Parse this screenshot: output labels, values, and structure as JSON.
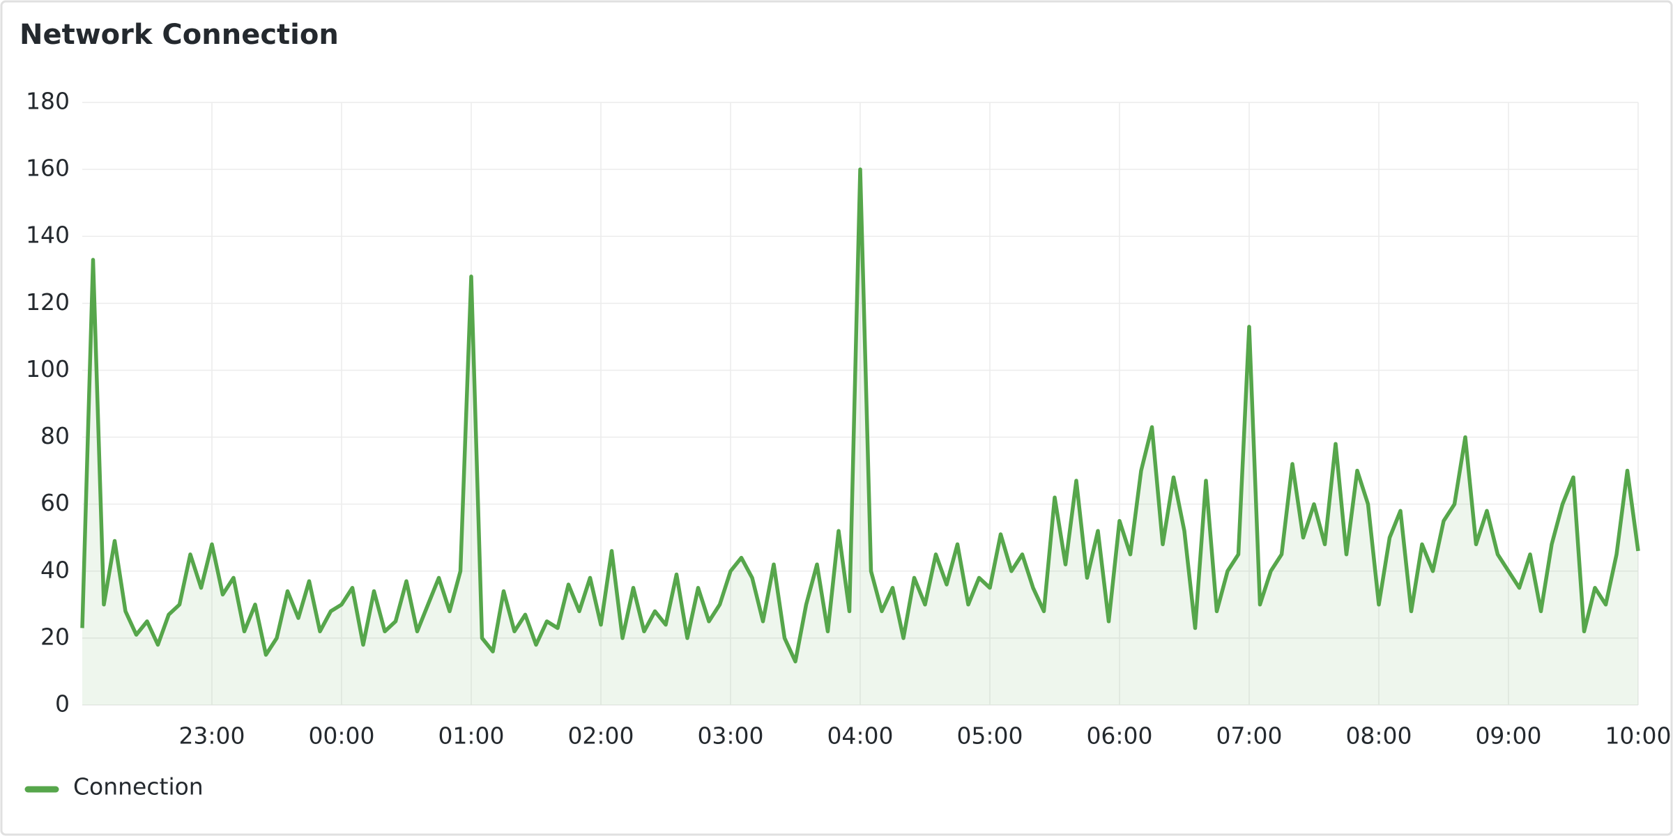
{
  "chart_data": {
    "type": "line",
    "title": "Network Connection",
    "x": [
      "22:00",
      "22:05",
      "22:10",
      "22:15",
      "22:20",
      "22:25",
      "22:30",
      "22:35",
      "22:40",
      "22:45",
      "22:50",
      "22:55",
      "23:00",
      "23:05",
      "23:10",
      "23:15",
      "23:20",
      "23:25",
      "23:30",
      "23:35",
      "23:40",
      "23:45",
      "23:50",
      "23:55",
      "00:00",
      "00:05",
      "00:10",
      "00:15",
      "00:20",
      "00:25",
      "00:30",
      "00:35",
      "00:40",
      "00:45",
      "00:50",
      "00:55",
      "01:00",
      "01:05",
      "01:10",
      "01:15",
      "01:20",
      "01:25",
      "01:30",
      "01:35",
      "01:40",
      "01:45",
      "01:50",
      "01:55",
      "02:00",
      "02:05",
      "02:10",
      "02:15",
      "02:20",
      "02:25",
      "02:30",
      "02:35",
      "02:40",
      "02:45",
      "02:50",
      "02:55",
      "03:00",
      "03:05",
      "03:10",
      "03:15",
      "03:20",
      "03:25",
      "03:30",
      "03:35",
      "03:40",
      "03:45",
      "03:50",
      "03:55",
      "04:00",
      "04:05",
      "04:10",
      "04:15",
      "04:20",
      "04:25",
      "04:30",
      "04:35",
      "04:40",
      "04:45",
      "04:50",
      "04:55",
      "05:00",
      "05:05",
      "05:10",
      "05:15",
      "05:20",
      "05:25",
      "05:30",
      "05:35",
      "05:40",
      "05:45",
      "05:50",
      "05:55",
      "06:00",
      "06:05",
      "06:10",
      "06:15",
      "06:20",
      "06:25",
      "06:30",
      "06:35",
      "06:40",
      "06:45",
      "06:50",
      "06:55",
      "07:00",
      "07:05",
      "07:10",
      "07:15",
      "07:20",
      "07:25",
      "07:30",
      "07:35",
      "07:40",
      "07:45",
      "07:50",
      "07:55",
      "08:00",
      "08:05",
      "08:10",
      "08:15",
      "08:20",
      "08:25",
      "08:30",
      "08:35",
      "08:40",
      "08:45",
      "08:50",
      "08:55",
      "09:00",
      "09:05",
      "09:10",
      "09:15",
      "09:20",
      "09:25",
      "09:30",
      "09:35",
      "09:40",
      "09:45",
      "09:50",
      "09:55",
      "10:00"
    ],
    "series": [
      {
        "name": "Connection",
        "color": "#56a64b",
        "values": [
          23,
          133,
          30,
          49,
          28,
          21,
          25,
          18,
          27,
          30,
          45,
          35,
          48,
          33,
          38,
          22,
          30,
          15,
          20,
          34,
          26,
          37,
          22,
          28,
          30,
          35,
          18,
          34,
          22,
          25,
          37,
          22,
          30,
          38,
          28,
          40,
          128,
          20,
          16,
          34,
          22,
          27,
          18,
          25,
          23,
          36,
          28,
          38,
          24,
          46,
          20,
          35,
          22,
          28,
          24,
          39,
          20,
          35,
          25,
          30,
          40,
          44,
          38,
          25,
          42,
          20,
          13,
          30,
          42,
          22,
          52,
          28,
          160,
          40,
          28,
          35,
          20,
          38,
          30,
          45,
          36,
          48,
          30,
          38,
          35,
          51,
          40,
          45,
          35,
          28,
          62,
          42,
          67,
          38,
          52,
          25,
          55,
          45,
          70,
          83,
          48,
          68,
          52,
          23,
          67,
          28,
          40,
          45,
          113,
          30,
          40,
          45,
          72,
          50,
          60,
          48,
          78,
          45,
          70,
          60,
          30,
          50,
          58,
          28,
          48,
          40,
          55,
          60,
          80,
          48,
          58,
          45,
          40,
          35,
          45,
          28,
          48,
          60,
          68,
          22,
          35,
          30,
          45,
          70,
          46
        ]
      }
    ],
    "xlim": [
      "22:00",
      "10:00"
    ],
    "xticks": [
      "23:00",
      "00:00",
      "01:00",
      "02:00",
      "03:00",
      "04:00",
      "05:00",
      "06:00",
      "07:00",
      "08:00",
      "09:00",
      "10:00"
    ],
    "ylim": [
      0,
      180
    ],
    "yticks": [
      0,
      20,
      40,
      60,
      80,
      100,
      120,
      140,
      160,
      180
    ],
    "grid": true,
    "legend": "bottom-left"
  }
}
